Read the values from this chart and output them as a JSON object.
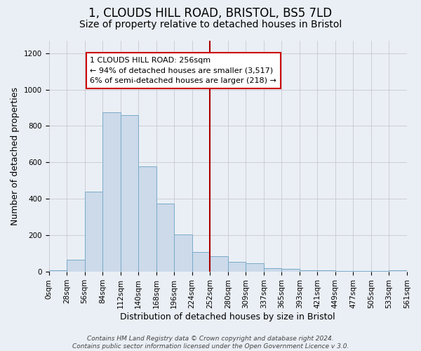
{
  "title1": "1, CLOUDS HILL ROAD, BRISTOL, BS5 7LD",
  "title2": "Size of property relative to detached houses in Bristol",
  "xlabel": "Distribution of detached houses by size in Bristol",
  "ylabel": "Number of detached properties",
  "bin_labels": [
    "0sqm",
    "28sqm",
    "56sqm",
    "84sqm",
    "112sqm",
    "140sqm",
    "168sqm",
    "196sqm",
    "224sqm",
    "252sqm",
    "280sqm",
    "309sqm",
    "337sqm",
    "365sqm",
    "393sqm",
    "421sqm",
    "449sqm",
    "477sqm",
    "505sqm",
    "533sqm",
    "561sqm"
  ],
  "bar_heights": [
    10,
    65,
    440,
    875,
    860,
    580,
    375,
    205,
    110,
    85,
    55,
    45,
    20,
    15,
    10,
    10,
    5,
    5,
    5,
    10
  ],
  "bar_color": "#ccdaea",
  "bar_edgecolor": "#7aaac8",
  "vline_x": 9,
  "vline_color": "#aa0000",
  "annotation_text": "1 CLOUDS HILL ROAD: 256sqm\n← 94% of detached houses are smaller (3,517)\n6% of semi-detached houses are larger (218) →",
  "annotation_box_edgecolor": "#cc0000",
  "annotation_box_facecolor": "#ffffff",
  "ylim": [
    0,
    1270
  ],
  "yticks": [
    0,
    200,
    400,
    600,
    800,
    1000,
    1200
  ],
  "grid_color": "#c8c8d0",
  "background_color": "#eaeff5",
  "footer_text": "Contains HM Land Registry data © Crown copyright and database right 2024.\nContains public sector information licensed under the Open Government Licence v 3.0.",
  "title1_fontsize": 12,
  "title2_fontsize": 10,
  "xlabel_fontsize": 9,
  "ylabel_fontsize": 9,
  "tick_fontsize": 7.5,
  "annotation_fontsize": 8,
  "footer_fontsize": 6.5
}
